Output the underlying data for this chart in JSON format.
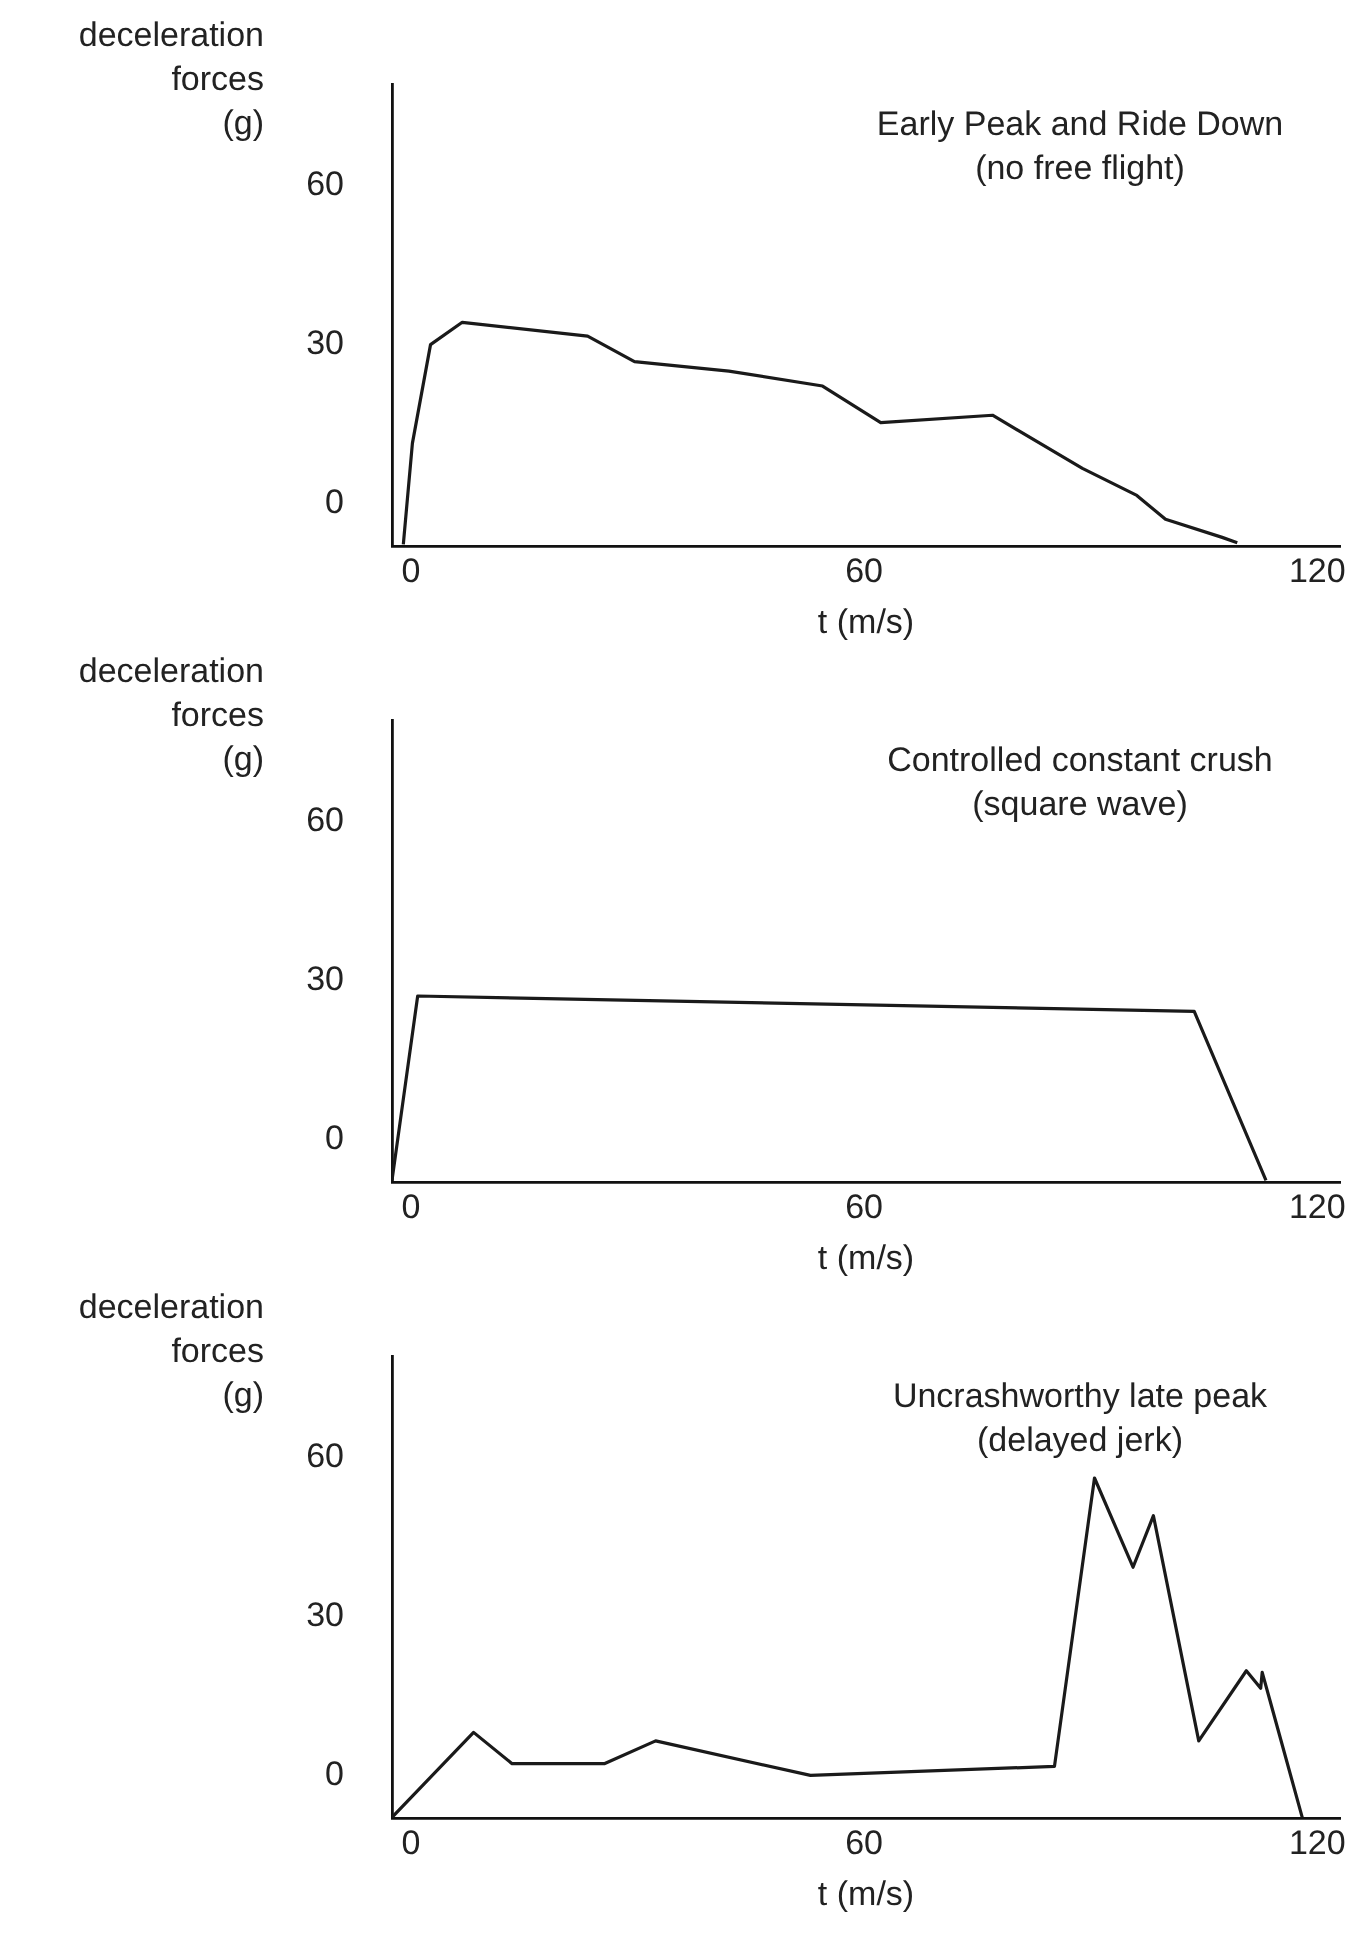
{
  "chart_data": [
    {
      "type": "line",
      "title": "Early Peak and Ride Down\n(no free flight)",
      "xlabel": "t (m/s)",
      "ylabel": "deceleration\nforces\n(g)",
      "color": "#1a1a1a",
      "x": [
        -1,
        0.2,
        2.6,
        6.8,
        23.4,
        29.6,
        42.1,
        54.5,
        62.2,
        77,
        88.9,
        96.1,
        99.9,
        107.4,
        109.4
      ],
      "values": [
        -7.6,
        11.4,
        30,
        34.2,
        31.6,
        26.8,
        25,
        22.2,
        15.3,
        16.7,
        6.7,
        1.6,
        -2.9,
        -6.3,
        -7.3
      ],
      "xlim": [
        -2.5,
        123
      ],
      "ylim": [
        -8,
        79
      ],
      "xticks": [
        0,
        60,
        120
      ],
      "yticks": [
        0,
        30,
        60
      ]
    },
    {
      "type": "line",
      "title": "Controlled constant crush\n(square wave)",
      "xlabel": "t (m/s)",
      "ylabel": "deceleration\nforces\n(g)",
      "color": "#1a1a1a",
      "x": [
        -2.5,
        0.9,
        103.7,
        113.2
      ],
      "values": [
        -7.6,
        27.1,
        24.2,
        -7.6
      ],
      "xlim": [
        -2.5,
        123
      ],
      "ylim": [
        -8,
        79
      ],
      "xticks": [
        0,
        60,
        120
      ],
      "yticks": [
        0,
        30,
        60
      ]
    },
    {
      "type": "line",
      "title": "Uncrashworthy late peak\n(delayed jerk)",
      "xlabel": "t (m/s)",
      "ylabel": "deceleration\nforces\n(g)",
      "color": "#1a1a1a",
      "x": [
        -2.5,
        8.3,
        13.4,
        25.6,
        32.4,
        52.9,
        85.2,
        90.5,
        95.6,
        98.3,
        104.3,
        110.6,
        112.5,
        112.7,
        118
      ],
      "values": [
        -7.8,
        8.2,
        2.3,
        2.3,
        6.6,
        0.1,
        1.8,
        56.1,
        39.3,
        49,
        6.6,
        19.8,
        16.5,
        19.5,
        -7.8
      ],
      "xlim": [
        -2.5,
        123
      ],
      "ylim": [
        -8,
        79
      ],
      "xticks": [
        0,
        60,
        120
      ],
      "yticks": [
        0,
        30,
        60
      ]
    }
  ]
}
